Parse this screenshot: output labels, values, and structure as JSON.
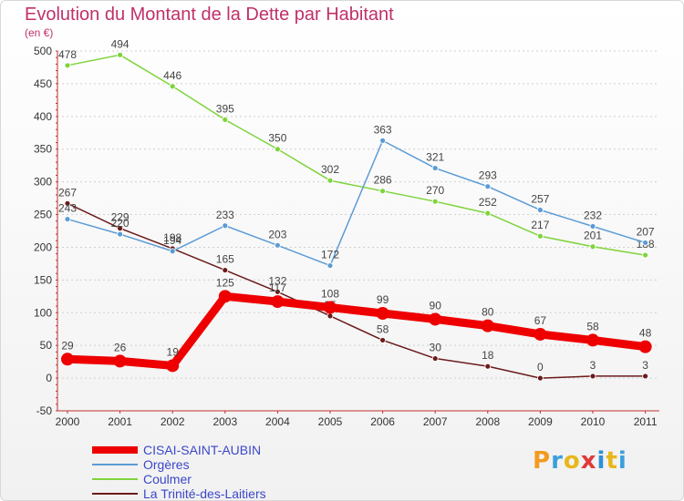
{
  "chart_data": {
    "type": "line",
    "title": "Evolution du Montant de la Dette par Habitant",
    "subtitle": "(en €)",
    "xlabel": "",
    "ylabel": "",
    "ylim": [
      -50,
      500
    ],
    "yticks": [
      -50,
      0,
      50,
      100,
      150,
      200,
      250,
      300,
      350,
      400,
      450,
      500
    ],
    "categories": [
      "2000",
      "2001",
      "2002",
      "2003",
      "2004",
      "2005",
      "2006",
      "2007",
      "2008",
      "2009",
      "2010",
      "2011"
    ],
    "grid": "horizontal-dashed",
    "legend_position": "bottom-left",
    "series": [
      {
        "name": "La Trinité-des-Laitiers",
        "color": "#6b1a1a",
        "values": [
          267,
          229,
          198,
          165,
          132,
          95,
          58,
          30,
          18,
          0,
          3,
          3
        ]
      },
      {
        "name": "Coulmer",
        "color": "#7ed43c",
        "values": [
          478,
          494,
          446,
          395,
          350,
          302,
          286,
          270,
          252,
          217,
          201,
          188
        ]
      },
      {
        "name": "Orgères",
        "color": "#5b9bd5",
        "values": [
          243,
          220,
          194,
          233,
          203,
          172,
          363,
          321,
          293,
          257,
          232,
          207
        ]
      },
      {
        "name": "CISAI-SAINT-AUBIN",
        "color": "#ee0000",
        "values": [
          29,
          26,
          19,
          125,
          117,
          108,
          99,
          90,
          80,
          67,
          58,
          48
        ]
      }
    ]
  },
  "legend": {
    "order": [
      3,
      2,
      1,
      0
    ]
  },
  "brand": {
    "text": "Proxiti",
    "letter_colors": [
      "#f29b1e",
      "#3aa0dc",
      "#e8b71a",
      "#e03a3a",
      "#2e8fd6",
      "#e8b71a",
      "#3aa0dc"
    ]
  }
}
